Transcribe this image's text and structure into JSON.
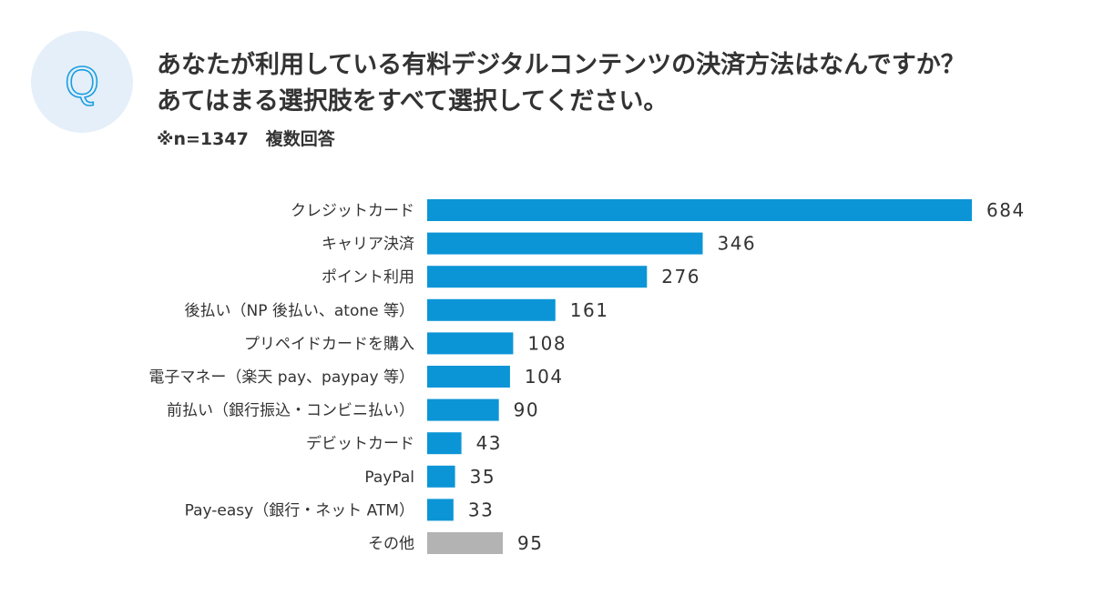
{
  "header": {
    "badge_letter": "Q",
    "question_line1": "あなたが利用している有料デジタルコンテンツの決済方法はなんですか？",
    "question_line2": "あてはまる選択肢をすべて選択してください。",
    "note": "※n=1347　複数回答"
  },
  "colors": {
    "bar": "#0c95d6",
    "other_bar": "#b3b3b3",
    "badge_bg": "#e4eff9",
    "badge_letter": "#1a9ee0",
    "text": "#333333"
  },
  "chart_data": {
    "type": "bar",
    "orientation": "horizontal",
    "title": "",
    "xlabel": "",
    "ylabel": "",
    "grid": false,
    "categories": [
      "クレジットカード",
      "キャリア決済",
      "ポイント利用",
      "後払い（NP 後払い、atone 等）",
      "プリペイドカードを購入",
      "電子マネー（楽天 pay、paypay 等）",
      "前払い（銀行振込・コンビニ払い）",
      "デビットカード",
      "PayPal",
      "Pay-easy（銀行・ネット ATM）",
      "その他"
    ],
    "values": [
      684,
      346,
      276,
      161,
      108,
      104,
      90,
      43,
      35,
      33,
      95
    ],
    "highlight": [
      "primary",
      "primary",
      "primary",
      "primary",
      "primary",
      "primary",
      "primary",
      "primary",
      "primary",
      "primary",
      "other"
    ]
  }
}
